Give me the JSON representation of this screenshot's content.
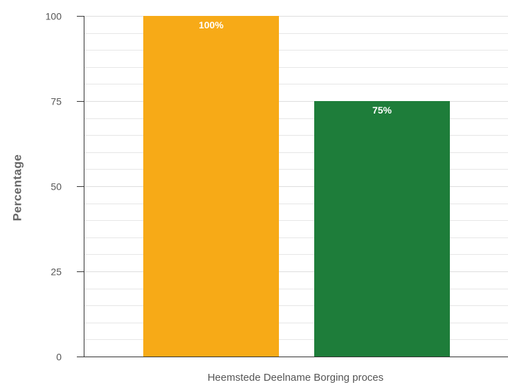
{
  "chart_data": {
    "type": "bar",
    "categories": [
      "Heemstede Deelname Borging proces"
    ],
    "series": [
      {
        "values": [
          100
        ],
        "color": "#f7aa17",
        "data_label": "100%"
      },
      {
        "values": [
          75
        ],
        "color": "#1e7d3a",
        "data_label": "75%"
      }
    ],
    "xlabel": "",
    "ylabel": "Percentage",
    "ylim": [
      0,
      100
    ],
    "yticks": [
      "0",
      "25",
      "50",
      "75",
      "100"
    ],
    "grid": true,
    "gridline_color": "#e6e6e6",
    "axis_color": "#333333",
    "legend": "none"
  }
}
